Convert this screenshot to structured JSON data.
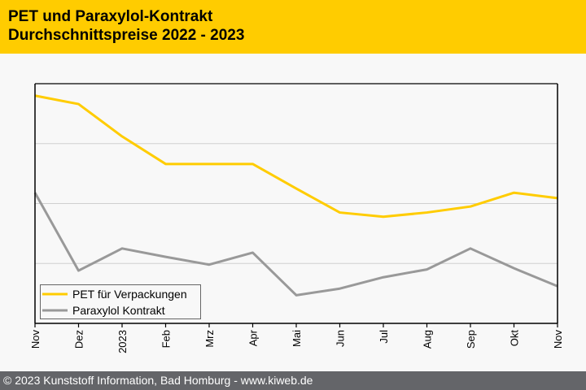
{
  "header": {
    "title_line1": "PET und Paraxylol-Kontrakt",
    "title_line2": "Durchschnittspreise 2022 - 2023"
  },
  "footer": {
    "copyright": "© 2023 Kunststoff Information, Bad Homburg - www.kiweb.de"
  },
  "colors": {
    "header_bg": "#ffcc00",
    "pet": "#ffcc00",
    "paraxylol": "#999999",
    "footer_bg": "#646569"
  },
  "chart_data": {
    "type": "line",
    "title": "PET und Paraxylol-Kontrakt Durchschnittspreise 2022 - 2023",
    "xlabel": "",
    "ylabel": "",
    "categories": [
      "Nov",
      "Dez",
      "2023",
      "Feb",
      "Mrz",
      "Apr",
      "Mai",
      "Jun",
      "Jul",
      "Aug",
      "Sep",
      "Okt",
      "Nov"
    ],
    "ylim": [
      0,
      4
    ],
    "grid": true,
    "legend_position": "bottom-left",
    "series": [
      {
        "name": "PET für Verpackungen",
        "color": "#ffcc00",
        "values": [
          3.8,
          3.66,
          3.12,
          2.66,
          2.66,
          2.66,
          2.25,
          1.85,
          1.78,
          1.85,
          1.95,
          2.18,
          2.09
        ]
      },
      {
        "name": "Paraxylol Kontrakt",
        "color": "#999999",
        "values": [
          2.18,
          0.88,
          1.25,
          1.11,
          0.98,
          1.18,
          0.47,
          0.58,
          0.77,
          0.9,
          1.25,
          0.92,
          0.62
        ]
      }
    ]
  }
}
